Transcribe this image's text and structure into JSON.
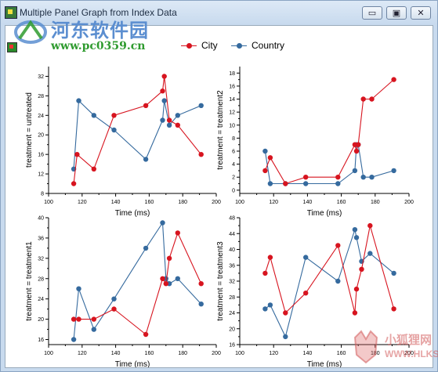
{
  "window": {
    "title": "Multiple Panel Graph from Index Data",
    "controls": {
      "minimize": "▭",
      "maximize": "▣",
      "close": "✕"
    }
  },
  "watermark_top": {
    "name": "河东软件园",
    "url": "www.pc0359.cn"
  },
  "watermark_bottom": {
    "name": "小狐狸网",
    "url": "WWW.HLKS.CN"
  },
  "legend": [
    {
      "label": "City",
      "color": "#d7141f"
    },
    {
      "label": "Country",
      "color": "#356a9e"
    }
  ],
  "colors": {
    "city": "#d7141f",
    "country": "#356a9e"
  },
  "chart_data": [
    {
      "type": "line",
      "panel": "top-left",
      "xlabel": "Time (ms)",
      "ylabel": "treatment = untreated",
      "xlim": [
        100,
        200
      ],
      "ylim": [
        8,
        34
      ],
      "xticks": [
        100,
        120,
        140,
        160,
        180,
        200
      ],
      "yticks": [
        8,
        12,
        16,
        20,
        24,
        28,
        32
      ],
      "xticklabels": [
        "100",
        "120",
        "140",
        "160",
        "180",
        "200"
      ],
      "yticklabels": [
        "8",
        "12",
        "16",
        "20",
        "24",
        "28",
        "32"
      ],
      "series": [
        {
          "name": "City",
          "x": [
            115,
            117,
            127,
            139,
            158,
            168,
            169,
            172,
            177,
            191
          ],
          "y": [
            10,
            16,
            13,
            24,
            26,
            29,
            32,
            23,
            22,
            16
          ]
        },
        {
          "name": "Country",
          "x": [
            115,
            118,
            127,
            139,
            158,
            168,
            169,
            172,
            177,
            191
          ],
          "y": [
            13,
            27,
            24,
            21,
            15,
            23,
            27,
            22,
            24,
            26
          ]
        }
      ]
    },
    {
      "type": "line",
      "panel": "top-right",
      "xlabel": "Time (ms)",
      "ylabel": "treatment = treatment2",
      "xlim": [
        100,
        200
      ],
      "ylim": [
        -0.5,
        19
      ],
      "xticks": [
        100,
        120,
        140,
        160,
        180,
        200
      ],
      "yticks": [
        0,
        2,
        4,
        6,
        8,
        10,
        12,
        14,
        16,
        18
      ],
      "xticklabels": [
        "100",
        "120",
        "140",
        "160",
        "180",
        "200"
      ],
      "yticklabels": [
        "0",
        "2",
        "4",
        "6",
        "8",
        "10",
        "12",
        "14",
        "16",
        "18"
      ],
      "series": [
        {
          "name": "City",
          "x": [
            115,
            118,
            127,
            139,
            158,
            168,
            169,
            170,
            173,
            178,
            191
          ],
          "y": [
            3,
            5,
            1,
            2,
            2,
            7,
            6,
            7,
            14,
            14,
            17
          ]
        },
        {
          "name": "Country",
          "x": [
            115,
            118,
            127,
            139,
            158,
            168,
            169,
            170,
            173,
            178,
            191
          ],
          "y": [
            6,
            1,
            1,
            1,
            1,
            3,
            7,
            7,
            2,
            2,
            3
          ]
        }
      ]
    },
    {
      "type": "line",
      "panel": "bottom-left",
      "xlabel": "Time (ms)",
      "ylabel": "treatment = treatment1",
      "xlim": [
        100,
        200
      ],
      "ylim": [
        15,
        40
      ],
      "xticks": [
        100,
        120,
        140,
        160,
        180,
        200
      ],
      "yticks": [
        16,
        20,
        24,
        28,
        32,
        36,
        40
      ],
      "xticklabels": [
        "100",
        "120",
        "140",
        "160",
        "180",
        "200"
      ],
      "yticklabels": [
        "16",
        "20",
        "24",
        "28",
        "32",
        "36",
        "40"
      ],
      "series": [
        {
          "name": "City",
          "x": [
            115,
            118,
            127,
            139,
            158,
            168,
            170,
            172,
            177,
            191
          ],
          "y": [
            20,
            20,
            20,
            22,
            17,
            28,
            27,
            32,
            37,
            27
          ]
        },
        {
          "name": "Country",
          "x": [
            115,
            118,
            127,
            139,
            158,
            168,
            170,
            172,
            177,
            191
          ],
          "y": [
            16,
            26,
            18,
            24,
            34,
            39,
            28,
            27,
            28,
            23
          ]
        }
      ]
    },
    {
      "type": "line",
      "panel": "bottom-right",
      "xlabel": "Time (ms)",
      "ylabel": "treatment = treatment3",
      "xlim": [
        100,
        200
      ],
      "ylim": [
        16,
        48
      ],
      "xticks": [
        100,
        120,
        140,
        160,
        180,
        200
      ],
      "yticks": [
        16,
        20,
        24,
        28,
        32,
        36,
        40,
        44,
        48
      ],
      "xticklabels": [
        "100",
        "120",
        "140",
        "160",
        "180",
        "200"
      ],
      "yticklabels": [
        "16",
        "20",
        "24",
        "28",
        "32",
        "36",
        "40",
        "44",
        "48"
      ],
      "series": [
        {
          "name": "City",
          "x": [
            115,
            118,
            127,
            139,
            158,
            168,
            169,
            172,
            177,
            191
          ],
          "y": [
            34,
            38,
            24,
            29,
            41,
            24,
            30,
            35,
            46,
            25
          ]
        },
        {
          "name": "Country",
          "x": [
            115,
            118,
            127,
            139,
            158,
            168,
            169,
            172,
            177,
            191
          ],
          "y": [
            25,
            26,
            18,
            38,
            32,
            45,
            43,
            37,
            39,
            34
          ]
        }
      ]
    }
  ]
}
